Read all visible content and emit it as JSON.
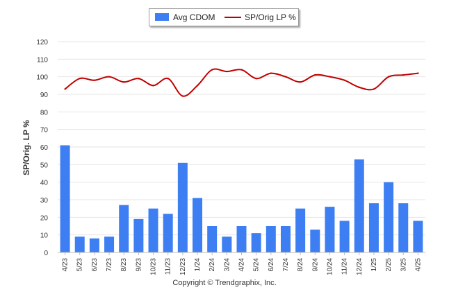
{
  "chart_data": {
    "type": "bar",
    "categories": [
      "4/23",
      "5/23",
      "6/23",
      "7/23",
      "8/23",
      "9/23",
      "10/23",
      "11/23",
      "12/23",
      "1/24",
      "2/24",
      "3/24",
      "4/24",
      "5/24",
      "6/24",
      "7/24",
      "8/24",
      "9/24",
      "10/24",
      "11/24",
      "12/24",
      "1/25",
      "2/25",
      "3/25",
      "4/25"
    ],
    "series": [
      {
        "name": "Avg CDOM",
        "type": "bar",
        "color": "#3d7ff2",
        "values": [
          61,
          9,
          8,
          9,
          27,
          19,
          25,
          22,
          51,
          31,
          15,
          9,
          15,
          11,
          15,
          15,
          25,
          13,
          26,
          18,
          53,
          28,
          40,
          28,
          18
        ]
      },
      {
        "name": "SP/Orig LP %",
        "type": "line",
        "color": "#c00000",
        "values": [
          93,
          99,
          98,
          100,
          97,
          99,
          95,
          99,
          89,
          95,
          104,
          103,
          104,
          99,
          102,
          100,
          97,
          101,
          100,
          98,
          94,
          93,
          100,
          101,
          102
        ]
      }
    ],
    "title": "",
    "xlabel": "",
    "ylabel": "SP/Orig. LP %",
    "ylim": [
      0,
      120
    ],
    "yticks": [
      0,
      10,
      20,
      30,
      40,
      50,
      60,
      70,
      80,
      90,
      100,
      110,
      120
    ],
    "grid": true,
    "legend_position": "top-center"
  },
  "legend": {
    "bar_label": "Avg CDOM",
    "line_label": "SP/Orig LP %"
  },
  "footer": {
    "copyright": "Copyright © Trendgraphix, Inc."
  }
}
